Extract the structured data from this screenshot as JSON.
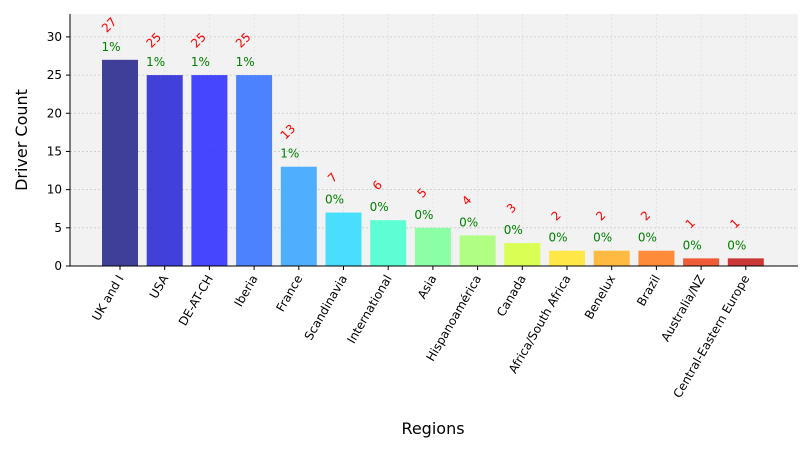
{
  "chart_data": {
    "type": "bar",
    "title": "",
    "xlabel": "Regions",
    "ylabel": "Driver Count",
    "categories": [
      "UK and I",
      "USA",
      "DE-AT-CH",
      "Iberia",
      "France",
      "Scandinavia",
      "International",
      "Asia",
      "Hispanoamérica",
      "Canada",
      "Africa/South Africa",
      "Benelux",
      "Brazil",
      "Australia/NZ",
      "Central-Eastern Europe"
    ],
    "values": [
      27,
      25,
      25,
      25,
      13,
      7,
      6,
      5,
      4,
      3,
      2,
      2,
      2,
      1,
      1
    ],
    "count_labels": [
      "27",
      "25",
      "25",
      "25",
      "13",
      "7",
      "6",
      "5",
      "4",
      "3",
      "2",
      "2",
      "2",
      "1",
      "1"
    ],
    "percent_labels": [
      "1%",
      "1%",
      "1%",
      "1%",
      "1%",
      "0%",
      "0%",
      "0%",
      "0%",
      "0%",
      "0%",
      "0%",
      "0%",
      "0%",
      "0%"
    ],
    "bar_colors": [
      "#2b2b8f",
      "#2e2ed6",
      "#3333ff",
      "#3a75ff",
      "#3da6ff",
      "#36dcff",
      "#4dffd0",
      "#7fff9d",
      "#a8ff78",
      "#d6ff43",
      "#ffe633",
      "#ffb42e",
      "#ff7f26",
      "#f04a22",
      "#c42222"
    ],
    "ylim": [
      0,
      33
    ],
    "yticks": [
      0,
      5,
      10,
      15,
      20,
      25,
      30
    ],
    "grid": true,
    "legend": "none",
    "plot_background": "#f2f2f2"
  }
}
